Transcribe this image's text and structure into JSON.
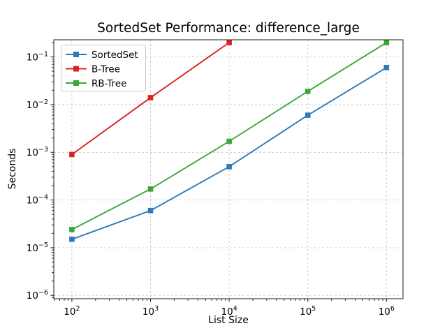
{
  "chart_data": {
    "type": "line",
    "title": "SortedSet Performance: difference_large",
    "xlabel": "List Size",
    "ylabel": "Seconds",
    "x_scale": "log",
    "y_scale": "log",
    "x": [
      100,
      1000,
      10000,
      100000,
      1000000
    ],
    "series": [
      {
        "name": "SortedSet",
        "color": "#2e7bba",
        "marker": "square",
        "values": [
          1.5e-05,
          6e-05,
          0.0005,
          0.006,
          0.06
        ]
      },
      {
        "name": "B-Tree",
        "color": "#dd2222",
        "marker": "square",
        "values": [
          0.0009,
          0.014,
          0.2
        ]
      },
      {
        "name": "RB-Tree",
        "color": "#3aa73a",
        "marker": "square",
        "values": [
          2.4e-05,
          0.00017,
          0.0017,
          0.019,
          0.2
        ]
      }
    ],
    "x_ticks_exp": [
      2,
      3,
      4,
      5,
      6
    ],
    "y_ticks_exp": [
      -6,
      -5,
      -4,
      -3,
      -2,
      -1
    ],
    "xlim_log": [
      1.77,
      6.21
    ],
    "ylim_log": [
      -6.07,
      -0.64
    ],
    "grid": true,
    "grid_style": "dashed",
    "grid_color": "#c9c9c9",
    "legend_position": "upper left",
    "tick_prefix": "10",
    "minus_sign": "−"
  }
}
